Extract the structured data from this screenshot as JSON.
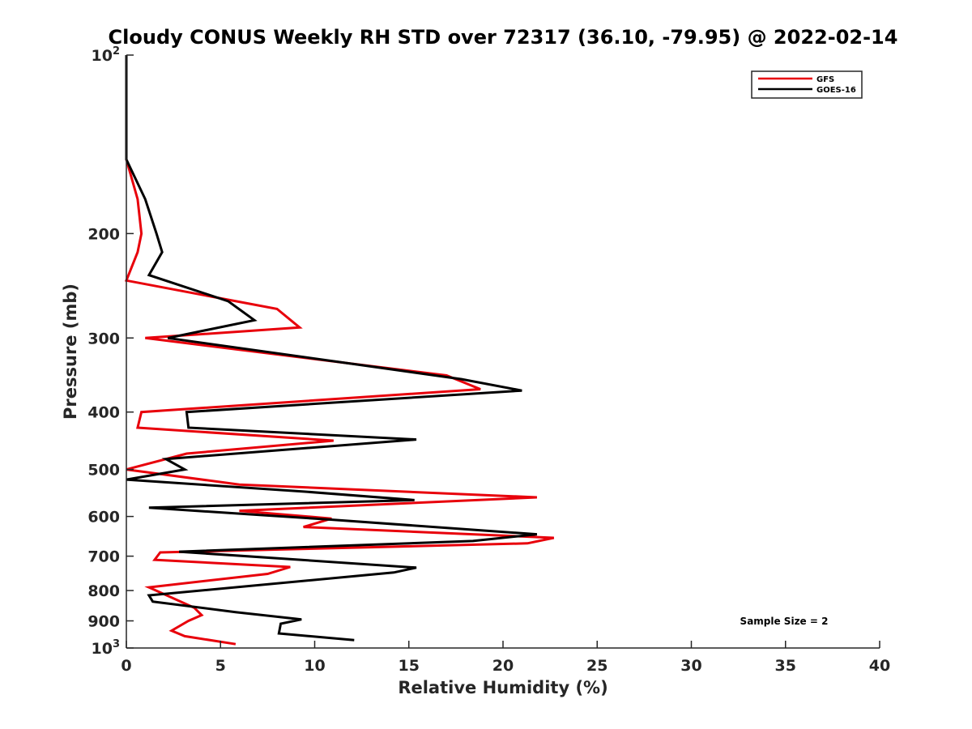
{
  "chart_data": {
    "type": "line",
    "title": "Cloudy CONUS Weekly RH STD over 72317 (36.10, -79.95) @ 2022-02-14",
    "xlabel": "Relative Humidity (%)",
    "ylabel": "Pressure (mb)",
    "xlim": [
      0,
      40
    ],
    "ylim": [
      100,
      1000
    ],
    "y_scale": "log",
    "y_reversed": true,
    "x_ticks": [
      0,
      5,
      10,
      15,
      20,
      25,
      30,
      35,
      40
    ],
    "x_tick_labels": [
      "0",
      "5",
      "10",
      "15",
      "20",
      "25",
      "30",
      "35",
      "40"
    ],
    "y_ticks": [
      100,
      200,
      300,
      400,
      500,
      600,
      700,
      800,
      900,
      1000
    ],
    "y_tick_labels": [
      {
        "base": "10",
        "exp": "2"
      },
      {
        "base": "200",
        "exp": ""
      },
      {
        "base": "300",
        "exp": ""
      },
      {
        "base": "400",
        "exp": ""
      },
      {
        "base": "500",
        "exp": ""
      },
      {
        "base": "600",
        "exp": ""
      },
      {
        "base": "700",
        "exp": ""
      },
      {
        "base": "800",
        "exp": ""
      },
      {
        "base": "900",
        "exp": ""
      },
      {
        "base": "10",
        "exp": "3"
      }
    ],
    "grid": false,
    "legend_position": "top-right",
    "annotation": "Sample Size = 2",
    "series": [
      {
        "name": "GFS",
        "color": "#e8000b",
        "points": [
          [
            0,
            100
          ],
          [
            0,
            150
          ],
          [
            0.6,
            175
          ],
          [
            0.8,
            200
          ],
          [
            0.6,
            215
          ],
          [
            0,
            240
          ],
          [
            8,
            268
          ],
          [
            9.2,
            288
          ],
          [
            1,
            300
          ],
          [
            17,
            347
          ],
          [
            18.8,
            366
          ],
          [
            0.8,
            400
          ],
          [
            0.6,
            425
          ],
          [
            11,
            447
          ],
          [
            3.2,
            470
          ],
          [
            0,
            500
          ],
          [
            6,
            530
          ],
          [
            21.8,
            557
          ],
          [
            6,
            587
          ],
          [
            10.9,
            605
          ],
          [
            9.4,
            625
          ],
          [
            22.7,
            652
          ],
          [
            21.3,
            666
          ],
          [
            1.8,
            690
          ],
          [
            1.5,
            710
          ],
          [
            8.7,
            730
          ],
          [
            7.5,
            750
          ],
          [
            1.2,
            790
          ],
          [
            3.6,
            855
          ],
          [
            4.0,
            880
          ],
          [
            3.3,
            900
          ],
          [
            2.4,
            935
          ],
          [
            3.1,
            955
          ],
          [
            5.8,
            985
          ]
        ]
      },
      {
        "name": "GOES-16",
        "color": "#000000",
        "points": [
          [
            0,
            100
          ],
          [
            0,
            150
          ],
          [
            1,
            175
          ],
          [
            1.6,
            200
          ],
          [
            1.9,
            215
          ],
          [
            1.2,
            235
          ],
          [
            5.4,
            260
          ],
          [
            6.8,
            280
          ],
          [
            2.2,
            300
          ],
          [
            17.8,
            352
          ],
          [
            21,
            368
          ],
          [
            3.2,
            400
          ],
          [
            3.3,
            425
          ],
          [
            15.4,
            445
          ],
          [
            2.1,
            480
          ],
          [
            3.1,
            500
          ],
          [
            0,
            520
          ],
          [
            9.5,
            545
          ],
          [
            15.3,
            563
          ],
          [
            1.2,
            580
          ],
          [
            10.7,
            607
          ],
          [
            21.8,
            643
          ],
          [
            18.4,
            660
          ],
          [
            2.8,
            688
          ],
          [
            15.4,
            732
          ],
          [
            14.2,
            746
          ],
          [
            1.2,
            815
          ],
          [
            1.4,
            835
          ],
          [
            5.8,
            870
          ],
          [
            9.3,
            895
          ],
          [
            8.2,
            910
          ],
          [
            8.1,
            945
          ],
          [
            12.1,
            970
          ]
        ]
      }
    ]
  }
}
